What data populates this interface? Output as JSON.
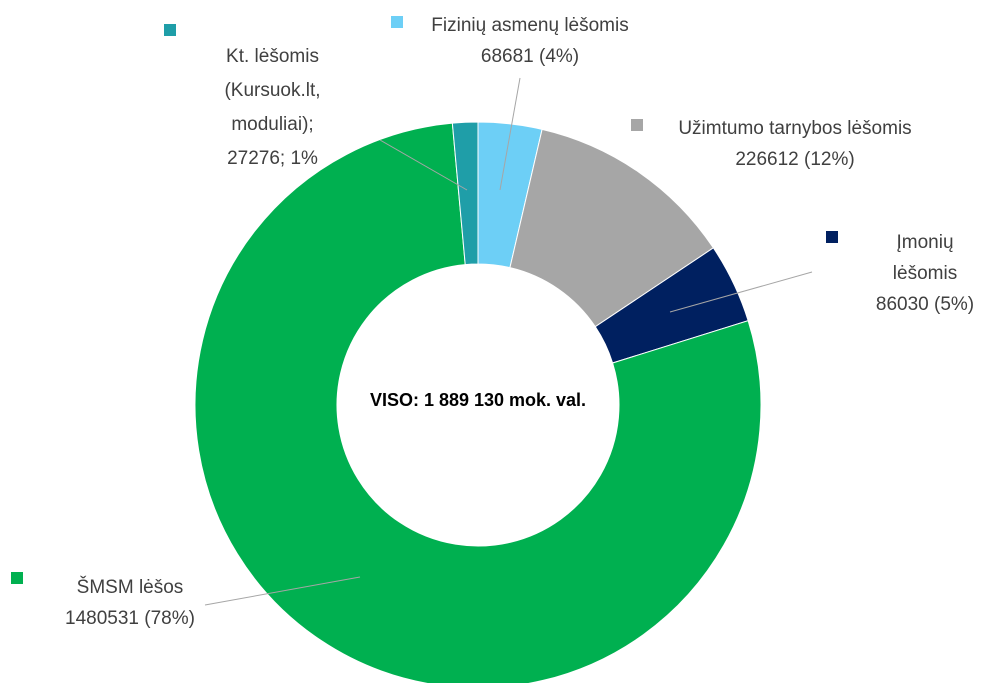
{
  "chart_data": {
    "type": "pie",
    "categories": [
      "Fizinių asmenų lėšomis",
      "Užimtumo tarnybos lėšomis",
      "Įmonių lėšomis",
      "ŠMSM lėšos",
      "Kt. lėšomis (Kursuok.lt, moduliai);"
    ],
    "values": [
      68681,
      226612,
      86030,
      1480531,
      27276
    ],
    "value_labels": [
      "68681 (4%)",
      "226612 (12%)",
      "86030 (5%)",
      "1480531 (78%)",
      "27276; 1%"
    ],
    "colors": [
      "#6dcff6",
      "#a6a6a6",
      "#002060",
      "#00b050",
      "#1f9ea8"
    ],
    "annotation": "VISO: 1 889 130 mok. val.",
    "hole": true
  }
}
